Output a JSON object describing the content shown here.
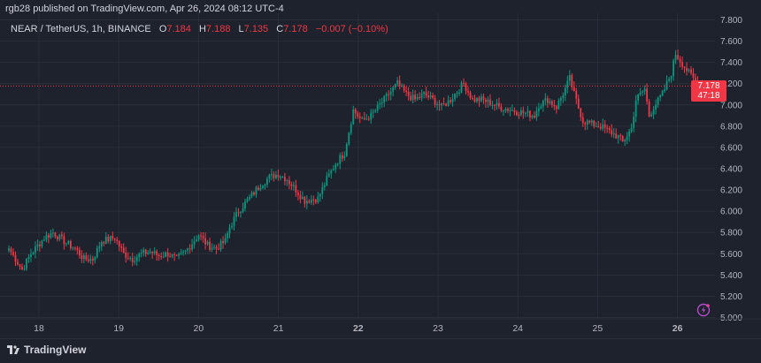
{
  "publisher_line": "rgb28 published on TradingView.com, Apr 26, 2024 08:12 UTC-4",
  "legend": {
    "symbol": "NEAR / TetherUS, 1h, BINANCE",
    "o_label": "O",
    "o_value": "7.184",
    "h_label": "H",
    "h_value": "7.188",
    "l_label": "L",
    "l_value": "7.135",
    "c_label": "C",
    "c_value": "7.178",
    "change": "−0.007 (−0.10%)"
  },
  "price_badge": {
    "price": "7.178",
    "countdown": "47:18"
  },
  "footer": {
    "brand": "TradingView"
  },
  "colors": {
    "up": "#089981",
    "down": "#f23645",
    "bg": "#1e222d",
    "grid": "#2a2e39",
    "text": "#b2b5be"
  },
  "chart_data": {
    "type": "candlestick",
    "y_ticks": [
      "5.000",
      "5.200",
      "5.400",
      "5.600",
      "5.800",
      "6.000",
      "6.200",
      "6.400",
      "6.600",
      "6.800",
      "7.000",
      "7.200",
      "7.400",
      "7.600",
      "7.800"
    ],
    "ylim": [
      5.0,
      7.8
    ],
    "x_ticks": [
      "18",
      "19",
      "20",
      "21",
      "22",
      "23",
      "24",
      "25",
      "26"
    ],
    "last_price": 7.178,
    "anchors": [
      [
        0,
        5.65
      ],
      [
        6,
        5.45
      ],
      [
        10,
        5.6
      ],
      [
        16,
        5.75
      ],
      [
        20,
        5.8
      ],
      [
        26,
        5.7
      ],
      [
        30,
        5.65
      ],
      [
        34,
        5.55
      ],
      [
        38,
        5.55
      ],
      [
        42,
        5.72
      ],
      [
        48,
        5.75
      ],
      [
        52,
        5.6
      ],
      [
        56,
        5.55
      ],
      [
        60,
        5.6
      ],
      [
        64,
        5.62
      ],
      [
        68,
        5.58
      ],
      [
        72,
        5.6
      ],
      [
        76,
        5.55
      ],
      [
        80,
        5.62
      ],
      [
        86,
        5.78
      ],
      [
        90,
        5.68
      ],
      [
        94,
        5.65
      ],
      [
        98,
        5.72
      ],
      [
        100,
        5.85
      ],
      [
        104,
        6.0
      ],
      [
        110,
        6.15
      ],
      [
        114,
        6.25
      ],
      [
        118,
        6.32
      ],
      [
        122,
        6.35
      ],
      [
        126,
        6.3
      ],
      [
        130,
        6.2
      ],
      [
        134,
        6.1
      ],
      [
        140,
        6.12
      ],
      [
        144,
        6.3
      ],
      [
        148,
        6.45
      ],
      [
        152,
        6.55
      ],
      [
        156,
        6.95
      ],
      [
        160,
        6.85
      ],
      [
        164,
        6.9
      ],
      [
        168,
        7.0
      ],
      [
        172,
        7.1
      ],
      [
        176,
        7.2
      ],
      [
        180,
        7.1
      ],
      [
        184,
        7.05
      ],
      [
        188,
        7.1
      ],
      [
        192,
        7.05
      ],
      [
        196,
        6.98
      ],
      [
        200,
        7.05
      ],
      [
        204,
        7.15
      ],
      [
        206,
        7.2
      ],
      [
        210,
        7.05
      ],
      [
        214,
        7.05
      ],
      [
        218,
        7.02
      ],
      [
        222,
        6.98
      ],
      [
        226,
        6.96
      ],
      [
        230,
        6.94
      ],
      [
        234,
        6.92
      ],
      [
        238,
        6.9
      ],
      [
        240,
        7.0
      ],
      [
        244,
        7.05
      ],
      [
        248,
        6.98
      ],
      [
        252,
        7.15
      ],
      [
        254,
        7.25
      ],
      [
        256,
        7.1
      ],
      [
        260,
        6.85
      ],
      [
        264,
        6.82
      ],
      [
        268,
        6.8
      ],
      [
        272,
        6.75
      ],
      [
        276,
        6.7
      ],
      [
        278,
        6.65
      ],
      [
        282,
        6.78
      ],
      [
        284,
        7.05
      ],
      [
        288,
        7.15
      ],
      [
        290,
        6.9
      ],
      [
        292,
        6.98
      ],
      [
        296,
        7.1
      ],
      [
        300,
        7.3
      ],
      [
        302,
        7.48
      ],
      [
        304,
        7.42
      ],
      [
        308,
        7.3
      ],
      [
        312,
        7.2
      ],
      [
        315,
        7.18
      ]
    ]
  }
}
